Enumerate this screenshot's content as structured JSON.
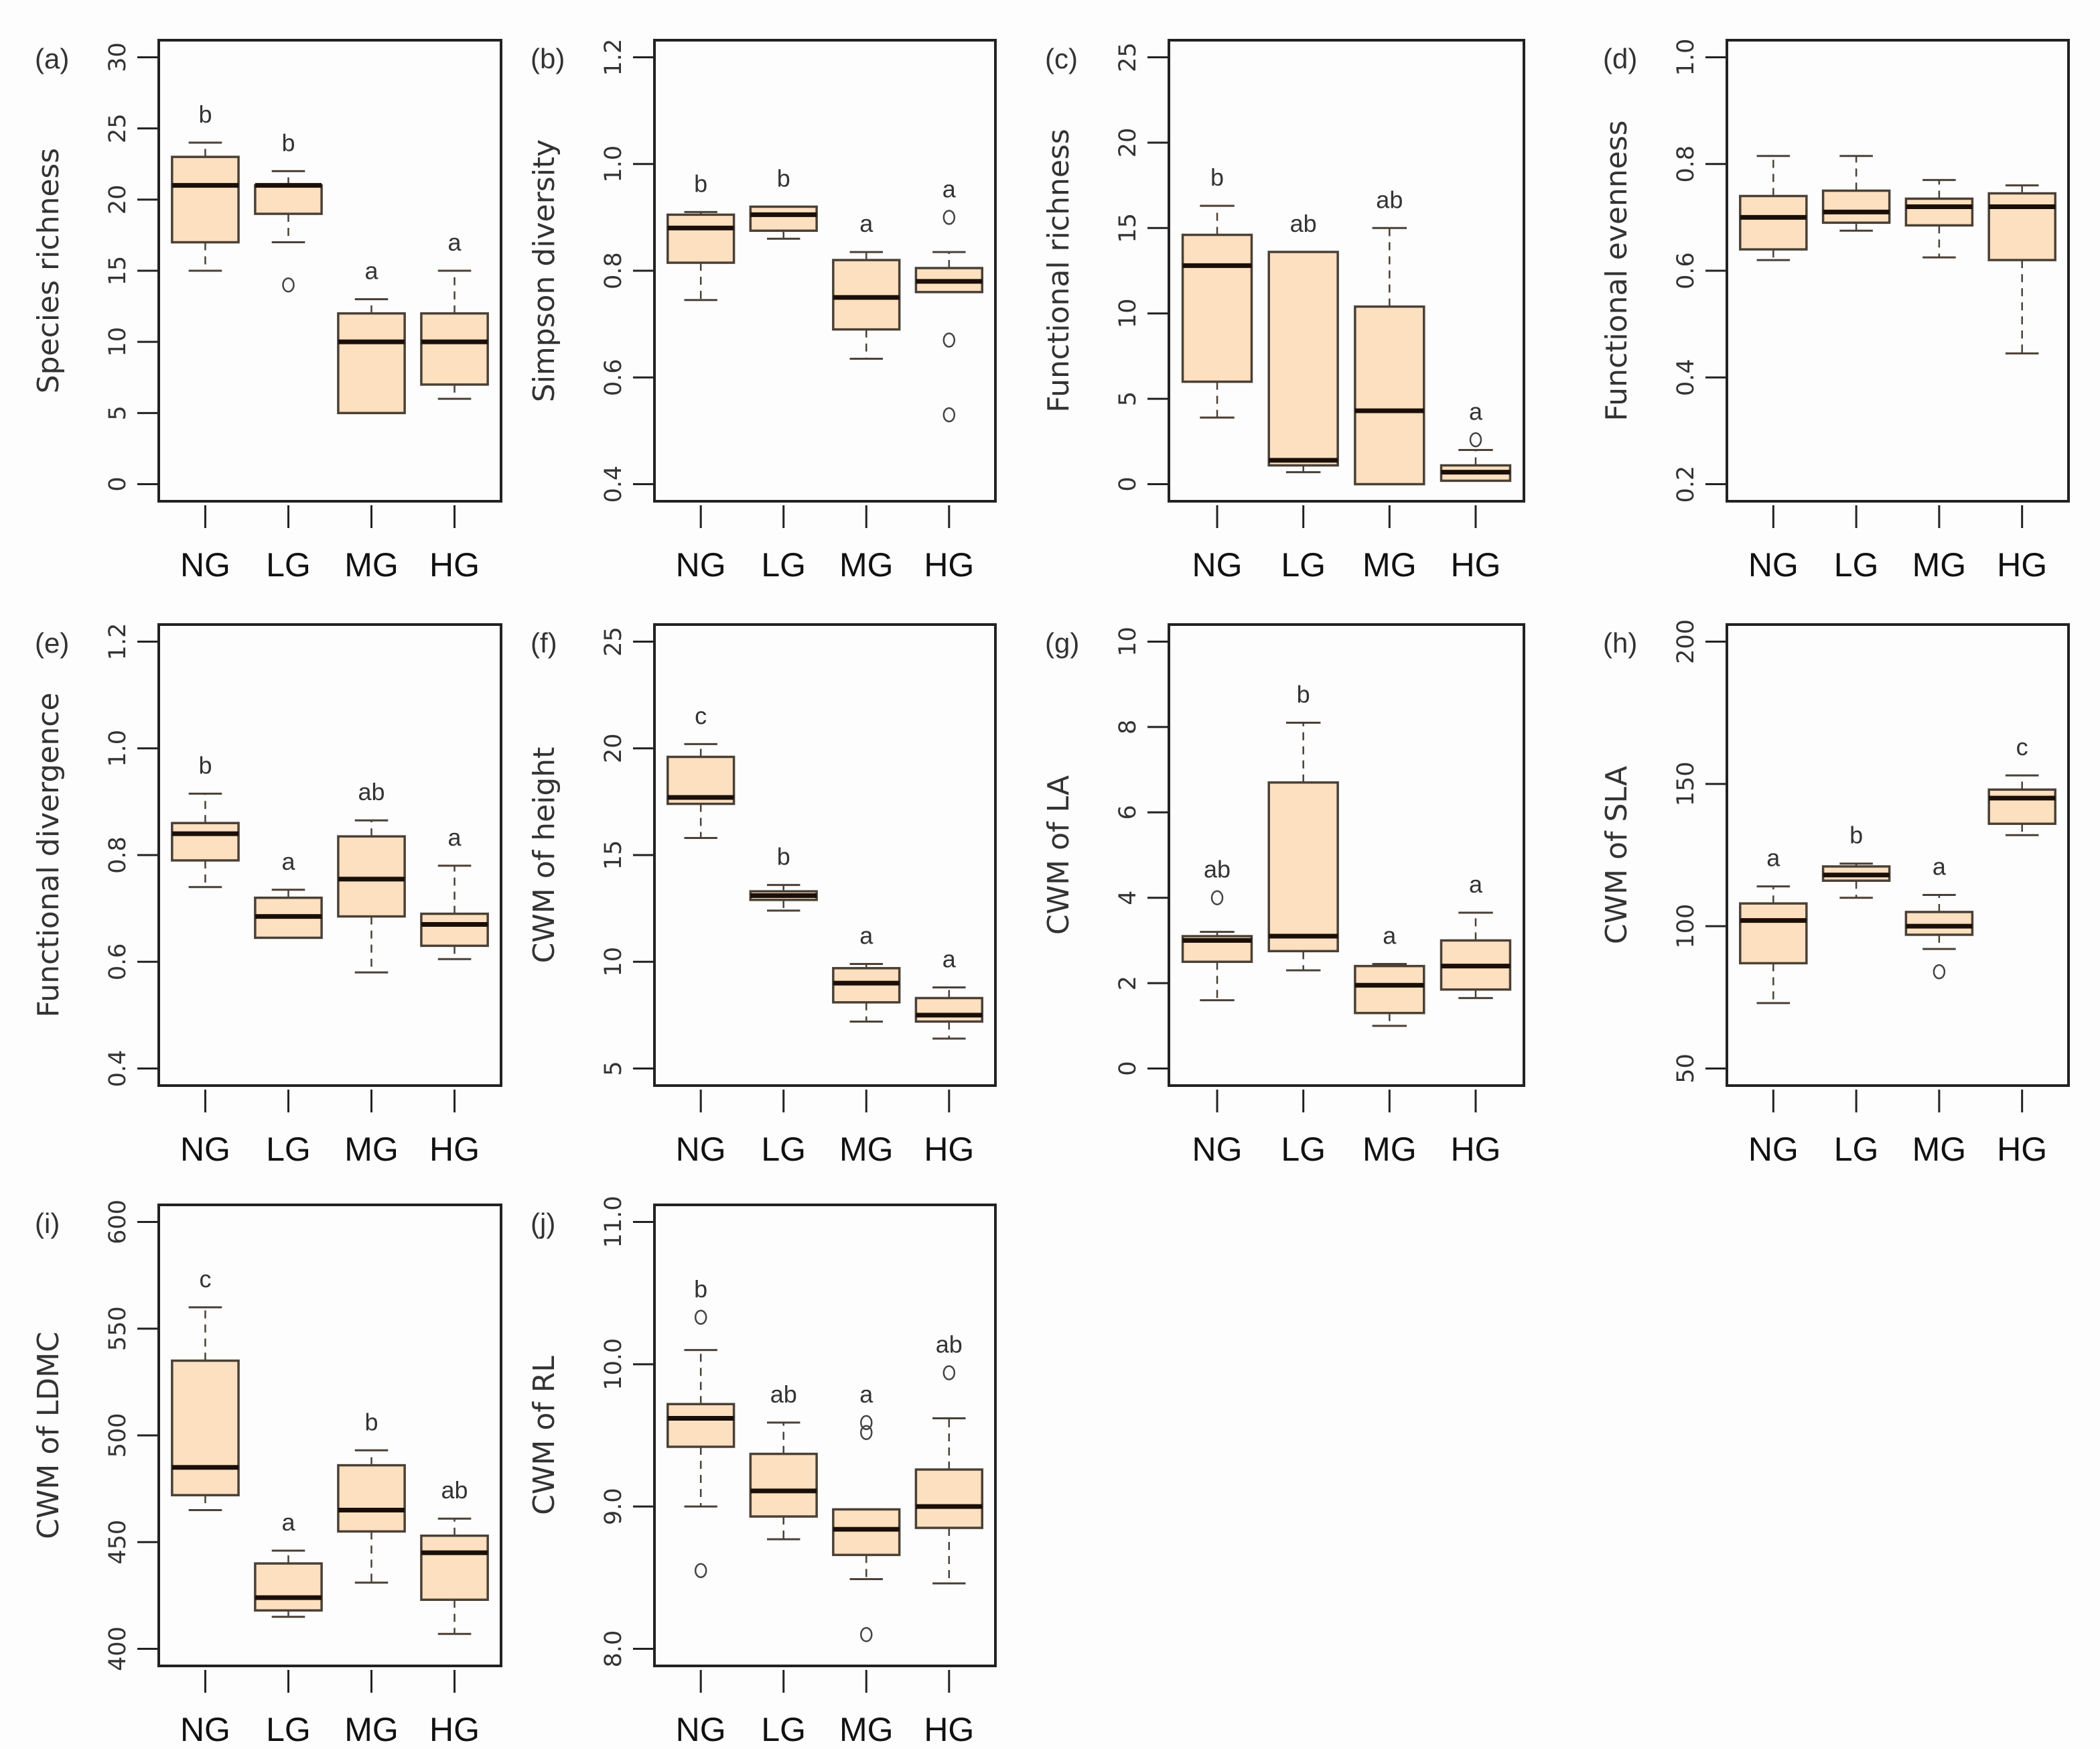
{
  "chart_data": [
    {
      "type": "box",
      "panel": "(a)",
      "ylabel": "Species richness",
      "ylim": [
        0,
        30
      ],
      "yticks": [
        "0",
        "5",
        "10",
        "15",
        "20",
        "25",
        "30"
      ],
      "ytick_values": [
        0,
        5,
        10,
        15,
        20,
        25,
        30
      ],
      "categories": [
        "NG",
        "LG",
        "MG",
        "HG"
      ],
      "boxes": [
        {
          "min": 15,
          "q1": 17,
          "median": 21,
          "q3": 23,
          "max": 24,
          "outliers": [],
          "letter": "b"
        },
        {
          "min": 17,
          "q1": 19,
          "median": 21,
          "q3": 21,
          "max": 22,
          "outliers": [
            14
          ],
          "letter": "b"
        },
        {
          "min": 5,
          "q1": 5,
          "median": 10,
          "q3": 12,
          "max": 13,
          "outliers": [],
          "letter": "a"
        },
        {
          "min": 6,
          "q1": 7,
          "median": 10,
          "q3": 12,
          "max": 15,
          "outliers": [],
          "letter": "a"
        }
      ]
    },
    {
      "type": "box",
      "panel": "(b)",
      "ylabel": "Simpson diversity",
      "ylim": [
        0.4,
        1.2
      ],
      "yticks": [
        "0.4",
        "0.6",
        "0.8",
        "1.0",
        "1.2"
      ],
      "ytick_values": [
        0.4,
        0.6,
        0.8,
        1.0,
        1.2
      ],
      "categories": [
        "NG",
        "LG",
        "MG",
        "HG"
      ],
      "boxes": [
        {
          "min": 0.745,
          "q1": 0.815,
          "median": 0.88,
          "q3": 0.905,
          "max": 0.91,
          "outliers": [],
          "letter": "b"
        },
        {
          "min": 0.86,
          "q1": 0.875,
          "median": 0.905,
          "q3": 0.92,
          "max": 0.92,
          "outliers": [],
          "letter": "b"
        },
        {
          "min": 0.635,
          "q1": 0.69,
          "median": 0.75,
          "q3": 0.82,
          "max": 0.835,
          "outliers": [],
          "letter": "a"
        },
        {
          "min": 0.76,
          "q1": 0.76,
          "median": 0.78,
          "q3": 0.805,
          "max": 0.835,
          "outliers": [
            0.9,
            0.67,
            0.53
          ],
          "letter": "a"
        }
      ]
    },
    {
      "type": "box",
      "panel": "(c)",
      "ylabel": "Functional richness",
      "ylim": [
        0,
        25
      ],
      "yticks": [
        "0",
        "5",
        "10",
        "15",
        "20",
        "25"
      ],
      "ytick_values": [
        0,
        5,
        10,
        15,
        20,
        25
      ],
      "categories": [
        "NG",
        "LG",
        "MG",
        "HG"
      ],
      "boxes": [
        {
          "min": 3.9,
          "q1": 6,
          "median": 12.8,
          "q3": 14.6,
          "max": 16.3,
          "outliers": [],
          "letter": "b"
        },
        {
          "min": 0.7,
          "q1": 1.1,
          "median": 1.4,
          "q3": 13.6,
          "max": 13.6,
          "outliers": [],
          "letter": "ab"
        },
        {
          "min": 0,
          "q1": 0,
          "median": 4.3,
          "q3": 10.4,
          "max": 15,
          "outliers": [],
          "letter": "ab"
        },
        {
          "min": 0.2,
          "q1": 0.2,
          "median": 0.7,
          "q3": 1.1,
          "max": 2,
          "outliers": [
            2.6
          ],
          "letter": "a"
        }
      ]
    },
    {
      "type": "box",
      "panel": "(d)",
      "ylabel": "Functional evenness",
      "ylim": [
        0.2,
        1.0
      ],
      "yticks": [
        "0.2",
        "0.4",
        "0.6",
        "0.8",
        "1.0"
      ],
      "ytick_values": [
        0.2,
        0.4,
        0.6,
        0.8,
        1.0
      ],
      "categories": [
        "NG",
        "LG",
        "MG",
        "HG"
      ],
      "boxes": [
        {
          "min": 0.62,
          "q1": 0.64,
          "median": 0.7,
          "q3": 0.74,
          "max": 0.815,
          "outliers": [],
          "letter": ""
        },
        {
          "min": 0.675,
          "q1": 0.69,
          "median": 0.71,
          "q3": 0.75,
          "max": 0.815,
          "outliers": [],
          "letter": ""
        },
        {
          "min": 0.625,
          "q1": 0.685,
          "median": 0.72,
          "q3": 0.735,
          "max": 0.77,
          "outliers": [],
          "letter": ""
        },
        {
          "min": 0.445,
          "q1": 0.62,
          "median": 0.72,
          "q3": 0.745,
          "max": 0.76,
          "outliers": [],
          "letter": ""
        }
      ]
    },
    {
      "type": "box",
      "panel": "(e)",
      "ylabel": "Functional divergence",
      "ylim": [
        0.4,
        1.2
      ],
      "yticks": [
        "0.4",
        "0.6",
        "0.8",
        "1.0",
        "1.2"
      ],
      "ytick_values": [
        0.4,
        0.6,
        0.8,
        1.0,
        1.2
      ],
      "categories": [
        "NG",
        "LG",
        "MG",
        "HG"
      ],
      "boxes": [
        {
          "min": 0.74,
          "q1": 0.79,
          "median": 0.84,
          "q3": 0.86,
          "max": 0.915,
          "outliers": [],
          "letter": "b"
        },
        {
          "min": 0.645,
          "q1": 0.645,
          "median": 0.685,
          "q3": 0.72,
          "max": 0.735,
          "outliers": [],
          "letter": "a"
        },
        {
          "min": 0.58,
          "q1": 0.685,
          "median": 0.755,
          "q3": 0.835,
          "max": 0.865,
          "outliers": [],
          "letter": "ab"
        },
        {
          "min": 0.605,
          "q1": 0.63,
          "median": 0.67,
          "q3": 0.69,
          "max": 0.78,
          "outliers": [],
          "letter": "a"
        }
      ]
    },
    {
      "type": "box",
      "panel": "(f)",
      "ylabel": "CWM of height",
      "ylim": [
        5,
        25
      ],
      "yticks": [
        "5",
        "10",
        "15",
        "20",
        "25"
      ],
      "ytick_values": [
        5,
        10,
        15,
        20,
        25
      ],
      "categories": [
        "NG",
        "LG",
        "MG",
        "HG"
      ],
      "boxes": [
        {
          "min": 15.8,
          "q1": 17.4,
          "median": 17.7,
          "q3": 19.6,
          "max": 20.2,
          "outliers": [],
          "letter": "c"
        },
        {
          "min": 12.4,
          "q1": 12.9,
          "median": 13.1,
          "q3": 13.3,
          "max": 13.6,
          "outliers": [],
          "letter": "b"
        },
        {
          "min": 7.2,
          "q1": 8.1,
          "median": 9.0,
          "q3": 9.7,
          "max": 9.9,
          "outliers": [],
          "letter": "a"
        },
        {
          "min": 6.4,
          "q1": 7.2,
          "median": 7.5,
          "q3": 8.3,
          "max": 8.8,
          "outliers": [],
          "letter": "a"
        }
      ]
    },
    {
      "type": "box",
      "panel": "(g)",
      "ylabel": "CWM of LA",
      "ylim": [
        0,
        10
      ],
      "yticks": [
        "0",
        "2",
        "4",
        "6",
        "8",
        "10"
      ],
      "ytick_values": [
        0,
        2,
        4,
        6,
        8,
        10
      ],
      "categories": [
        "NG",
        "LG",
        "MG",
        "HG"
      ],
      "boxes": [
        {
          "min": 1.6,
          "q1": 2.5,
          "median": 3.0,
          "q3": 3.1,
          "max": 3.2,
          "outliers": [
            4.0
          ],
          "letter": "ab"
        },
        {
          "min": 2.3,
          "q1": 2.75,
          "median": 3.1,
          "q3": 6.7,
          "max": 8.1,
          "outliers": [],
          "letter": "b"
        },
        {
          "min": 1.0,
          "q1": 1.3,
          "median": 1.95,
          "q3": 2.4,
          "max": 2.45,
          "outliers": [],
          "letter": "a"
        },
        {
          "min": 1.65,
          "q1": 1.85,
          "median": 2.4,
          "q3": 3.0,
          "max": 3.65,
          "outliers": [],
          "letter": "a"
        }
      ]
    },
    {
      "type": "box",
      "panel": "(h)",
      "ylabel": "CWM of SLA",
      "ylim": [
        50,
        200
      ],
      "yticks": [
        "50",
        "100",
        "150",
        "200"
      ],
      "ytick_values": [
        50,
        100,
        150,
        200
      ],
      "categories": [
        "NG",
        "LG",
        "MG",
        "HG"
      ],
      "boxes": [
        {
          "min": 73,
          "q1": 87,
          "median": 102,
          "q3": 108,
          "max": 114,
          "outliers": [],
          "letter": "a"
        },
        {
          "min": 110,
          "q1": 116,
          "median": 118,
          "q3": 121,
          "max": 122,
          "outliers": [],
          "letter": "b"
        },
        {
          "min": 92,
          "q1": 97,
          "median": 100,
          "q3": 105,
          "max": 111,
          "outliers": [
            84
          ],
          "letter": "a"
        },
        {
          "min": 132,
          "q1": 136,
          "median": 145,
          "q3": 148,
          "max": 153,
          "outliers": [],
          "letter": "c"
        }
      ]
    },
    {
      "type": "box",
      "panel": "(i)",
      "ylabel": "CWM of LDMC",
      "ylim": [
        400,
        600
      ],
      "yticks": [
        "400",
        "450",
        "500",
        "550",
        "600"
      ],
      "ytick_values": [
        400,
        450,
        500,
        550,
        600
      ],
      "categories": [
        "NG",
        "LG",
        "MG",
        "HG"
      ],
      "boxes": [
        {
          "min": 465,
          "q1": 472,
          "median": 485,
          "q3": 535,
          "max": 560,
          "outliers": [],
          "letter": "c"
        },
        {
          "min": 415,
          "q1": 418,
          "median": 424,
          "q3": 440,
          "max": 446,
          "outliers": [],
          "letter": "a"
        },
        {
          "min": 431,
          "q1": 455,
          "median": 465,
          "q3": 486,
          "max": 493,
          "outliers": [],
          "letter": "b"
        },
        {
          "min": 407,
          "q1": 423,
          "median": 445,
          "q3": 453,
          "max": 461,
          "outliers": [],
          "letter": "ab"
        }
      ]
    },
    {
      "type": "box",
      "panel": "(j)",
      "ylabel": "CWM of RL",
      "ylim": [
        8.0,
        11.0
      ],
      "yticks": [
        "8.0",
        "9.0",
        "10.0",
        "11.0"
      ],
      "ytick_values": [
        8,
        9,
        10,
        11
      ],
      "categories": [
        "NG",
        "LG",
        "MG",
        "HG"
      ],
      "boxes": [
        {
          "min": 9.0,
          "q1": 9.42,
          "median": 9.62,
          "q3": 9.72,
          "max": 10.1,
          "outliers": [
            10.33,
            8.55
          ],
          "letter": "b"
        },
        {
          "min": 8.77,
          "q1": 8.93,
          "median": 9.11,
          "q3": 9.37,
          "max": 9.59,
          "outliers": [],
          "letter": "ab"
        },
        {
          "min": 8.49,
          "q1": 8.66,
          "median": 8.84,
          "q3": 8.98,
          "max": 8.98,
          "outliers": [
            9.59,
            9.52,
            8.1
          ],
          "letter": "a"
        },
        {
          "min": 8.46,
          "q1": 8.85,
          "median": 9.0,
          "q3": 9.26,
          "max": 9.62,
          "outliers": [
            9.94
          ],
          "letter": "ab"
        }
      ]
    }
  ],
  "colors": {
    "box_fill": "#fde0c0",
    "box_stroke": "#4a4036",
    "median": "#1a0f08",
    "axis": "#222222",
    "background": "#fdfdfd"
  }
}
